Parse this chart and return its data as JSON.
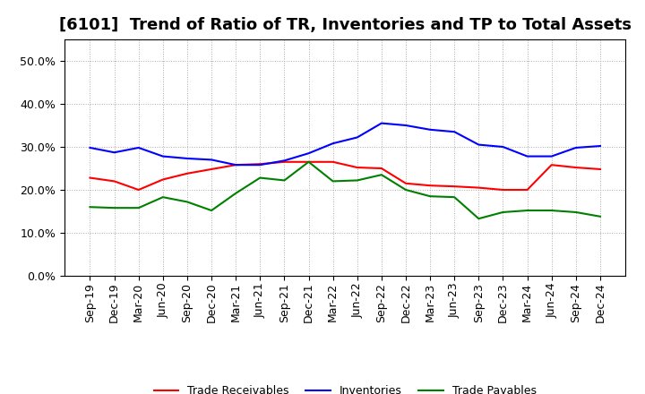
{
  "title": "[6101]  Trend of Ratio of TR, Inventories and TP to Total Assets",
  "x_labels": [
    "Sep-19",
    "Dec-19",
    "Mar-20",
    "Jun-20",
    "Sep-20",
    "Dec-20",
    "Mar-21",
    "Jun-21",
    "Sep-21",
    "Dec-21",
    "Mar-22",
    "Jun-22",
    "Sep-22",
    "Dec-22",
    "Mar-23",
    "Jun-23",
    "Sep-23",
    "Dec-23",
    "Mar-24",
    "Jun-24",
    "Sep-24",
    "Dec-24"
  ],
  "trade_receivables": [
    0.228,
    0.22,
    0.2,
    0.224,
    0.238,
    0.248,
    0.258,
    0.26,
    0.265,
    0.265,
    0.265,
    0.252,
    0.25,
    0.215,
    0.21,
    0.208,
    0.205,
    0.2,
    0.2,
    0.258,
    0.252,
    0.248
  ],
  "inventories": [
    0.298,
    0.287,
    0.298,
    0.278,
    0.273,
    0.27,
    0.258,
    0.258,
    0.268,
    0.285,
    0.308,
    0.322,
    0.355,
    0.35,
    0.34,
    0.335,
    0.305,
    0.3,
    0.278,
    0.278,
    0.298,
    0.302
  ],
  "trade_payables": [
    0.16,
    0.158,
    0.158,
    0.183,
    0.172,
    0.152,
    0.192,
    0.228,
    0.222,
    0.265,
    0.22,
    0.222,
    0.235,
    0.2,
    0.185,
    0.183,
    0.133,
    0.148,
    0.152,
    0.152,
    0.148,
    0.138
  ],
  "ylim": [
    0.0,
    0.55
  ],
  "yticks": [
    0.0,
    0.1,
    0.2,
    0.3,
    0.4,
    0.5
  ],
  "line_color_tr": "#ff0000",
  "line_color_inv": "#0000ff",
  "line_color_tp": "#008000",
  "legend_labels": [
    "Trade Receivables",
    "Inventories",
    "Trade Payables"
  ],
  "bg_color": "#ffffff",
  "plot_bg_color": "#ffffff",
  "grid_color": "#aaaaaa",
  "title_fontsize": 13,
  "tick_fontsize": 9,
  "legend_fontsize": 9
}
